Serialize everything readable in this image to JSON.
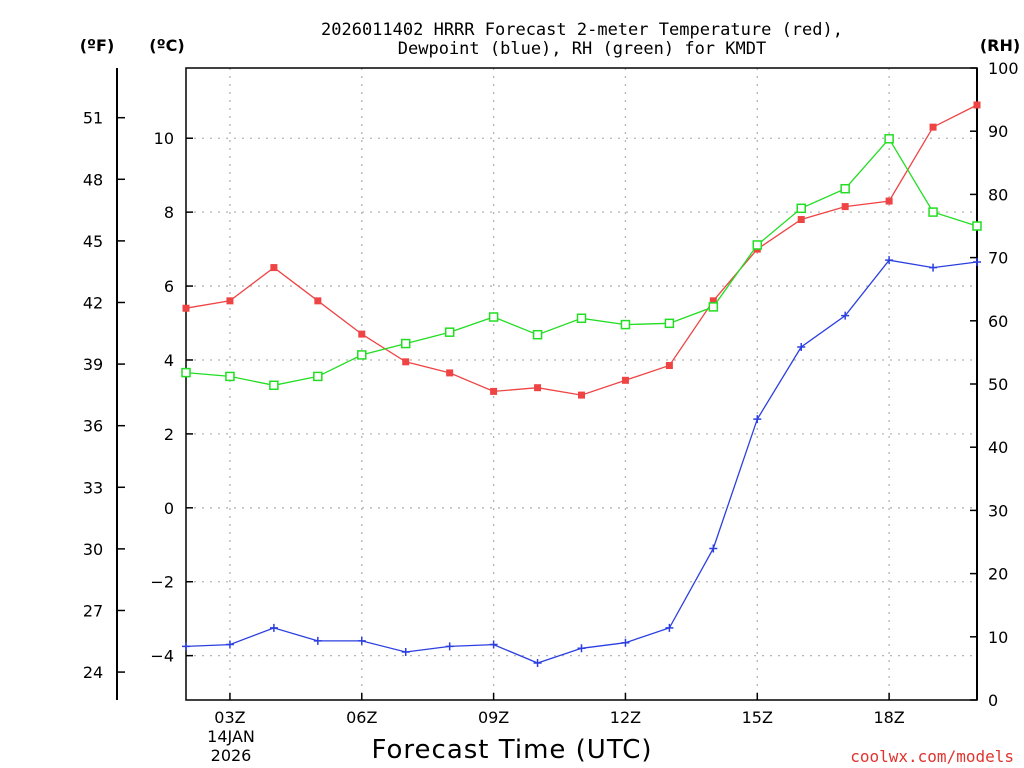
{
  "chart_data": {
    "type": "line",
    "title_line1": "2026011402 HRRR Forecast 2-meter Temperature (red),",
    "title_line2": "Dewpoint (blue), RH (green) for KMDT",
    "xlabel": "Forecast Time (UTC)",
    "credit": "coolwx.com/models",
    "date_label": [
      "14JAN",
      "2026"
    ],
    "x_hours": [
      2,
      3,
      4,
      5,
      6,
      7,
      8,
      9,
      10,
      11,
      12,
      13,
      14,
      15,
      16,
      17,
      18,
      19,
      20
    ],
    "x_ticks": [
      {
        "hour": 3,
        "label": "03Z"
      },
      {
        "hour": 6,
        "label": "06Z"
      },
      {
        "hour": 9,
        "label": "09Z"
      },
      {
        "hour": 12,
        "label": "12Z"
      },
      {
        "hour": 15,
        "label": "15Z"
      },
      {
        "hour": 18,
        "label": "18Z"
      }
    ],
    "xlim": [
      2,
      20
    ],
    "axes": {
      "fahrenheit": {
        "unit": "(ºF)",
        "ticks": [
          24,
          27,
          30,
          33,
          36,
          39,
          42,
          45,
          48,
          51
        ]
      },
      "celsius": {
        "unit": "(ºC)",
        "ticks": [
          -4,
          -2,
          0,
          2,
          4,
          6,
          8,
          10
        ],
        "ylim": [
          -5.2,
          11.9
        ]
      },
      "rh": {
        "unit": "(RH)",
        "ticks": [
          0,
          10,
          20,
          30,
          40,
          50,
          60,
          70,
          80,
          90,
          100
        ],
        "ylim": [
          0,
          100
        ]
      }
    },
    "grid": true,
    "series": [
      {
        "name": "Temperature",
        "axis": "celsius",
        "color": "#ef4444",
        "marker": "filled-square",
        "values": [
          5.4,
          5.6,
          6.5,
          5.6,
          4.7,
          3.95,
          3.65,
          3.15,
          3.25,
          3.05,
          3.45,
          3.85,
          5.6,
          7.0,
          7.8,
          8.15,
          8.3,
          10.3,
          10.9
        ]
      },
      {
        "name": "Dewpoint",
        "axis": "celsius",
        "color": "#2b3fe0",
        "marker": "plus",
        "values": [
          -3.75,
          -3.7,
          -3.25,
          -3.6,
          -3.6,
          -3.9,
          -3.75,
          -3.7,
          -4.2,
          -3.8,
          -3.65,
          -3.25,
          -1.1,
          2.4,
          4.35,
          5.2,
          6.7,
          6.5,
          6.65
        ]
      },
      {
        "name": "RH",
        "axis": "rh",
        "color": "#22dd22",
        "marker": "open-square",
        "values": [
          51.8,
          51.2,
          49.8,
          51.2,
          54.6,
          56.4,
          58.2,
          60.6,
          57.8,
          60.4,
          59.4,
          59.6,
          62.2,
          72.0,
          77.8,
          80.9,
          88.8,
          77.2,
          75.0
        ]
      }
    ]
  }
}
